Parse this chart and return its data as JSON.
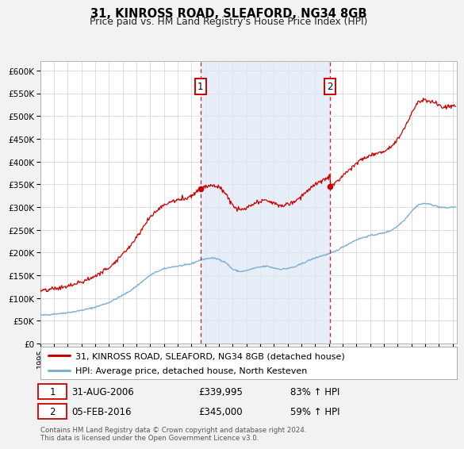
{
  "title": "31, KINROSS ROAD, SLEAFORD, NG34 8GB",
  "subtitle": "Price paid vs. HM Land Registry's House Price Index (HPI)",
  "red_label": "31, KINROSS ROAD, SLEAFORD, NG34 8GB (detached house)",
  "blue_label": "HPI: Average price, detached house, North Kesteven",
  "annotation1_date": "31-AUG-2006",
  "annotation1_price": "£339,995",
  "annotation1_hpi": "83% ↑ HPI",
  "annotation2_date": "05-FEB-2016",
  "annotation2_price": "£345,000",
  "annotation2_hpi": "59% ↑ HPI",
  "footnote": "Contains HM Land Registry data © Crown copyright and database right 2024.\nThis data is licensed under the Open Government Licence v3.0.",
  "ylim_min": 0,
  "ylim_max": 620000,
  "yticks": [
    0,
    50000,
    100000,
    150000,
    200000,
    250000,
    300000,
    350000,
    400000,
    450000,
    500000,
    550000,
    600000
  ],
  "bg_color": "#f2f2f2",
  "plot_bg_color": "#ffffff",
  "red_color": "#cc0000",
  "blue_color": "#7bb0d4",
  "vline_color": "#cc0000",
  "sale1_x": 2006.667,
  "sale1_y": 339995,
  "sale2_x": 2016.09,
  "sale2_y": 345000,
  "shade_color": "#dde8f5",
  "xmin": 1995,
  "xmax": 2025.3
}
